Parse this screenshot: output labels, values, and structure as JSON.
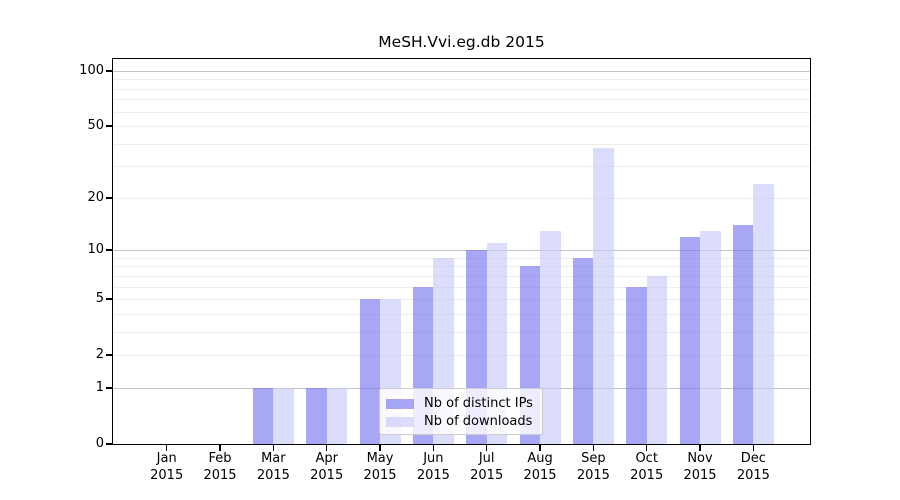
{
  "chart_data": {
    "type": "bar",
    "title": "MeSH.Vvi.eg.db 2015",
    "categories": [
      "Jan 2015",
      "Feb 2015",
      "Mar 2015",
      "Apr 2015",
      "May 2015",
      "Jun 2015",
      "Jul 2015",
      "Aug 2015",
      "Sep 2015",
      "Oct 2015",
      "Nov 2015",
      "Dec 2015"
    ],
    "x_ticks": [
      {
        "line1": "Jan",
        "line2": "2015"
      },
      {
        "line1": "Feb",
        "line2": "2015"
      },
      {
        "line1": "Mar",
        "line2": "2015"
      },
      {
        "line1": "Apr",
        "line2": "2015"
      },
      {
        "line1": "May",
        "line2": "2015"
      },
      {
        "line1": "Jun",
        "line2": "2015"
      },
      {
        "line1": "Jul",
        "line2": "2015"
      },
      {
        "line1": "Aug",
        "line2": "2015"
      },
      {
        "line1": "Sep",
        "line2": "2015"
      },
      {
        "line1": "Oct",
        "line2": "2015"
      },
      {
        "line1": "Nov",
        "line2": "2015"
      },
      {
        "line1": "Dec",
        "line2": "2015"
      }
    ],
    "series": [
      {
        "name": "Nb of distinct IPs",
        "color": "rgba(122,122,242,0.66)",
        "values": [
          0,
          0,
          1,
          1,
          5,
          6,
          10,
          8,
          9,
          6,
          12,
          14
        ]
      },
      {
        "name": "Nb of downloads",
        "color": "rgba(198,198,248,0.62)",
        "values": [
          0,
          0,
          1,
          1,
          5,
          9,
          11,
          13,
          38,
          7,
          13,
          24
        ]
      }
    ],
    "yscale": "log(1+y)",
    "ylim": [
      0,
      116
    ],
    "y_ticks": [
      0,
      1,
      2,
      5,
      10,
      20,
      50,
      100
    ],
    "y_gridlines_minor": [
      2,
      3,
      4,
      5,
      6,
      7,
      8,
      9,
      20,
      30,
      40,
      50,
      60,
      70,
      80,
      90
    ],
    "y_gridlines_major": [
      1,
      10,
      100
    ],
    "grid": "horizontal-only",
    "legend": {
      "position": "inside-bottom-center",
      "items": [
        "Nb of distinct IPs",
        "Nb of downloads"
      ]
    }
  }
}
